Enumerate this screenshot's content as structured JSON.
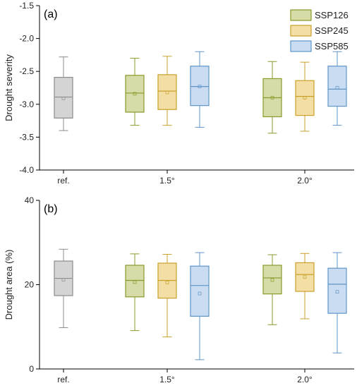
{
  "chart_data": [
    {
      "type": "box",
      "panel_label": "(a)",
      "ylabel": "Drought severity",
      "ylim": [
        -4.0,
        -1.5
      ],
      "yticks": [
        -4.0,
        -3.5,
        -3.0,
        -2.5,
        -2.0,
        -1.5
      ],
      "ytick_labels": [
        "-4.0",
        "-3.5",
        "-3.0",
        "-2.5",
        "-2.0",
        "-1.5"
      ],
      "categories": [
        "ref.",
        "1.5°",
        "2.0°"
      ],
      "legend": {
        "placement": "top-right",
        "entries": [
          "SSP126",
          "SSP245",
          "SSP585"
        ]
      },
      "boxes": [
        {
          "group": "ref.",
          "series": "ref.",
          "whisker_low": -3.4,
          "q1": -3.21,
          "median": -2.89,
          "q3": -2.59,
          "whisker_high": -2.28,
          "mean": -2.91
        },
        {
          "group": "1.5°",
          "series": "SSP126",
          "whisker_low": -3.32,
          "q1": -3.12,
          "median": -2.83,
          "q3": -2.56,
          "whisker_high": -2.3,
          "mean": -2.84
        },
        {
          "group": "1.5°",
          "series": "SSP245",
          "whisker_low": -3.32,
          "q1": -3.08,
          "median": -2.8,
          "q3": -2.55,
          "whisker_high": -2.27,
          "mean": -2.82
        },
        {
          "group": "1.5°",
          "series": "SSP585",
          "whisker_low": -3.35,
          "q1": -3.02,
          "median": -2.73,
          "q3": -2.42,
          "whisker_high": -2.2,
          "mean": -2.73
        },
        {
          "group": "2.0°",
          "series": "SSP126",
          "whisker_low": -3.44,
          "q1": -3.19,
          "median": -2.9,
          "q3": -2.61,
          "whisker_high": -2.35,
          "mean": -2.9
        },
        {
          "group": "2.0°",
          "series": "SSP245",
          "whisker_low": -3.41,
          "q1": -3.17,
          "median": -2.88,
          "q3": -2.64,
          "whisker_high": -2.36,
          "mean": -2.9
        },
        {
          "group": "2.0°",
          "series": "SSP585",
          "whisker_low": -3.32,
          "q1": -3.03,
          "median": -2.77,
          "q3": -2.42,
          "whisker_high": -2.2,
          "mean": -2.75
        }
      ]
    },
    {
      "type": "box",
      "panel_label": "(b)",
      "ylabel": "Drought area (%)",
      "ylim": [
        0,
        40
      ],
      "yticks": [
        0,
        20,
        40
      ],
      "ytick_labels": [
        "0",
        "20",
        "40"
      ],
      "categories": [
        "ref.",
        "1.5°",
        "2.0°"
      ],
      "boxes": [
        {
          "group": "ref.",
          "series": "ref.",
          "whisker_low": 9.8,
          "q1": 17.4,
          "median": 21.5,
          "q3": 25.6,
          "whisker_high": 28.4,
          "mean": 21.2
        },
        {
          "group": "1.5°",
          "series": "SSP126",
          "whisker_low": 9.1,
          "q1": 17.1,
          "median": 21.0,
          "q3": 24.6,
          "whisker_high": 27.3,
          "mean": 20.6
        },
        {
          "group": "1.5°",
          "series": "SSP245",
          "whisker_low": 7.6,
          "q1": 16.8,
          "median": 21.0,
          "q3": 25.1,
          "whisker_high": 27.2,
          "mean": 20.5
        },
        {
          "group": "1.5°",
          "series": "SSP585",
          "whisker_low": 2.2,
          "q1": 12.5,
          "median": 19.8,
          "q3": 24.4,
          "whisker_high": 27.6,
          "mean": 17.9
        },
        {
          "group": "2.0°",
          "series": "SSP126",
          "whisker_low": 10.5,
          "q1": 17.8,
          "median": 21.6,
          "q3": 24.6,
          "whisker_high": 27.1,
          "mean": 21.1
        },
        {
          "group": "2.0°",
          "series": "SSP245",
          "whisker_low": 11.9,
          "q1": 18.4,
          "median": 22.4,
          "q3": 25.2,
          "whisker_high": 27.4,
          "mean": 21.8
        },
        {
          "group": "2.0°",
          "series": "SSP585",
          "whisker_low": 3.8,
          "q1": 13.2,
          "median": 20.1,
          "q3": 23.9,
          "whisker_high": 27.6,
          "mean": 18.3
        }
      ]
    }
  ],
  "colors": {
    "ref.": {
      "fill": "#d4d4d4",
      "stroke": "#8c8c8c"
    },
    "SSP126": {
      "fill": "#d6dba8",
      "stroke": "#8a9a2b"
    },
    "SSP245": {
      "fill": "#f3dfa6",
      "stroke": "#c9a02a"
    },
    "SSP585": {
      "fill": "#c9dcf2",
      "stroke": "#5f95c7"
    }
  }
}
